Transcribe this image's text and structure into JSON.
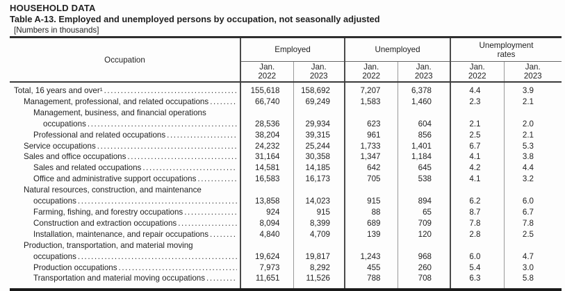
{
  "page": {
    "section_title": "HOUSEHOLD DATA",
    "table_title": "Table A-13. Employed and unemployed persons by occupation, not seasonally adjusted",
    "units_note": "[Numbers in thousands]"
  },
  "colors": {
    "text": "#222222",
    "rule_thick": "#2e2e2e",
    "rule_bottom": "#1a1a1a",
    "divider_group": "#4a4a4a",
    "divider_sub": "#999999",
    "background": "#fdfdfd"
  },
  "table": {
    "occupation_header": "Occupation",
    "groups": [
      {
        "label": "Employed",
        "subcolumns": [
          {
            "month": "Jan.",
            "year": "2022"
          },
          {
            "month": "Jan.",
            "year": "2023"
          }
        ]
      },
      {
        "label": "Unemployed",
        "subcolumns": [
          {
            "month": "Jan.",
            "year": "2022"
          },
          {
            "month": "Jan.",
            "year": "2023"
          }
        ]
      },
      {
        "label": "Unemployment rates",
        "subcolumns": [
          {
            "month": "Jan.",
            "year": "2022"
          },
          {
            "month": "Jan.",
            "year": "2023"
          }
        ]
      }
    ],
    "rows": [
      {
        "indent": 0,
        "label": "Total, 16 years and over¹",
        "values": [
          "155,618",
          "158,692",
          "7,207",
          "6,378",
          "4.4",
          "3.9"
        ]
      },
      {
        "indent": 1,
        "label": "Management, professional, and related occupations",
        "values": [
          "66,740",
          "69,249",
          "1,583",
          "1,460",
          "2.3",
          "2.1"
        ]
      },
      {
        "indent": 2,
        "label": "Management, business, and financial operations",
        "label2": "occupations",
        "values": [
          "28,536",
          "29,934",
          "623",
          "604",
          "2.1",
          "2.0"
        ]
      },
      {
        "indent": 2,
        "label": "Professional and related occupations",
        "values": [
          "38,204",
          "39,315",
          "961",
          "856",
          "2.5",
          "2.1"
        ]
      },
      {
        "indent": 1,
        "label": "Service occupations",
        "values": [
          "24,232",
          "25,244",
          "1,733",
          "1,401",
          "6.7",
          "5.3"
        ]
      },
      {
        "indent": 1,
        "label": "Sales and office occupations",
        "values": [
          "31,164",
          "30,358",
          "1,347",
          "1,184",
          "4.1",
          "3.8"
        ]
      },
      {
        "indent": 2,
        "label": "Sales and related occupations",
        "values": [
          "14,581",
          "14,185",
          "642",
          "645",
          "4.2",
          "4.4"
        ]
      },
      {
        "indent": 2,
        "label": "Office and administrative support occupations",
        "values": [
          "16,583",
          "16,173",
          "705",
          "538",
          "4.1",
          "3.2"
        ]
      },
      {
        "indent": 1,
        "label": "Natural resources, construction, and maintenance",
        "label2": "occupations",
        "values": [
          "13,858",
          "14,023",
          "915",
          "894",
          "6.2",
          "6.0"
        ]
      },
      {
        "indent": 2,
        "label": "Farming, fishing, and forestry occupations",
        "values": [
          "924",
          "915",
          "88",
          "65",
          "8.7",
          "6.7"
        ]
      },
      {
        "indent": 2,
        "label": "Construction and extraction occupations",
        "values": [
          "8,094",
          "8,399",
          "689",
          "709",
          "7.8",
          "7.8"
        ]
      },
      {
        "indent": 2,
        "label": "Installation, maintenance, and repair occupations",
        "values": [
          "4,840",
          "4,709",
          "139",
          "120",
          "2.8",
          "2.5"
        ]
      },
      {
        "indent": 1,
        "label": "Production, transportation, and material moving",
        "label2": "occupations",
        "values": [
          "19,624",
          "19,817",
          "1,243",
          "968",
          "6.0",
          "4.7"
        ]
      },
      {
        "indent": 2,
        "label": "Production occupations",
        "values": [
          "7,973",
          "8,292",
          "455",
          "260",
          "5.4",
          "3.0"
        ]
      },
      {
        "indent": 2,
        "label": "Transportation and material moving occupations",
        "values": [
          "11,651",
          "11,526",
          "788",
          "708",
          "6.3",
          "5.8"
        ]
      }
    ]
  }
}
